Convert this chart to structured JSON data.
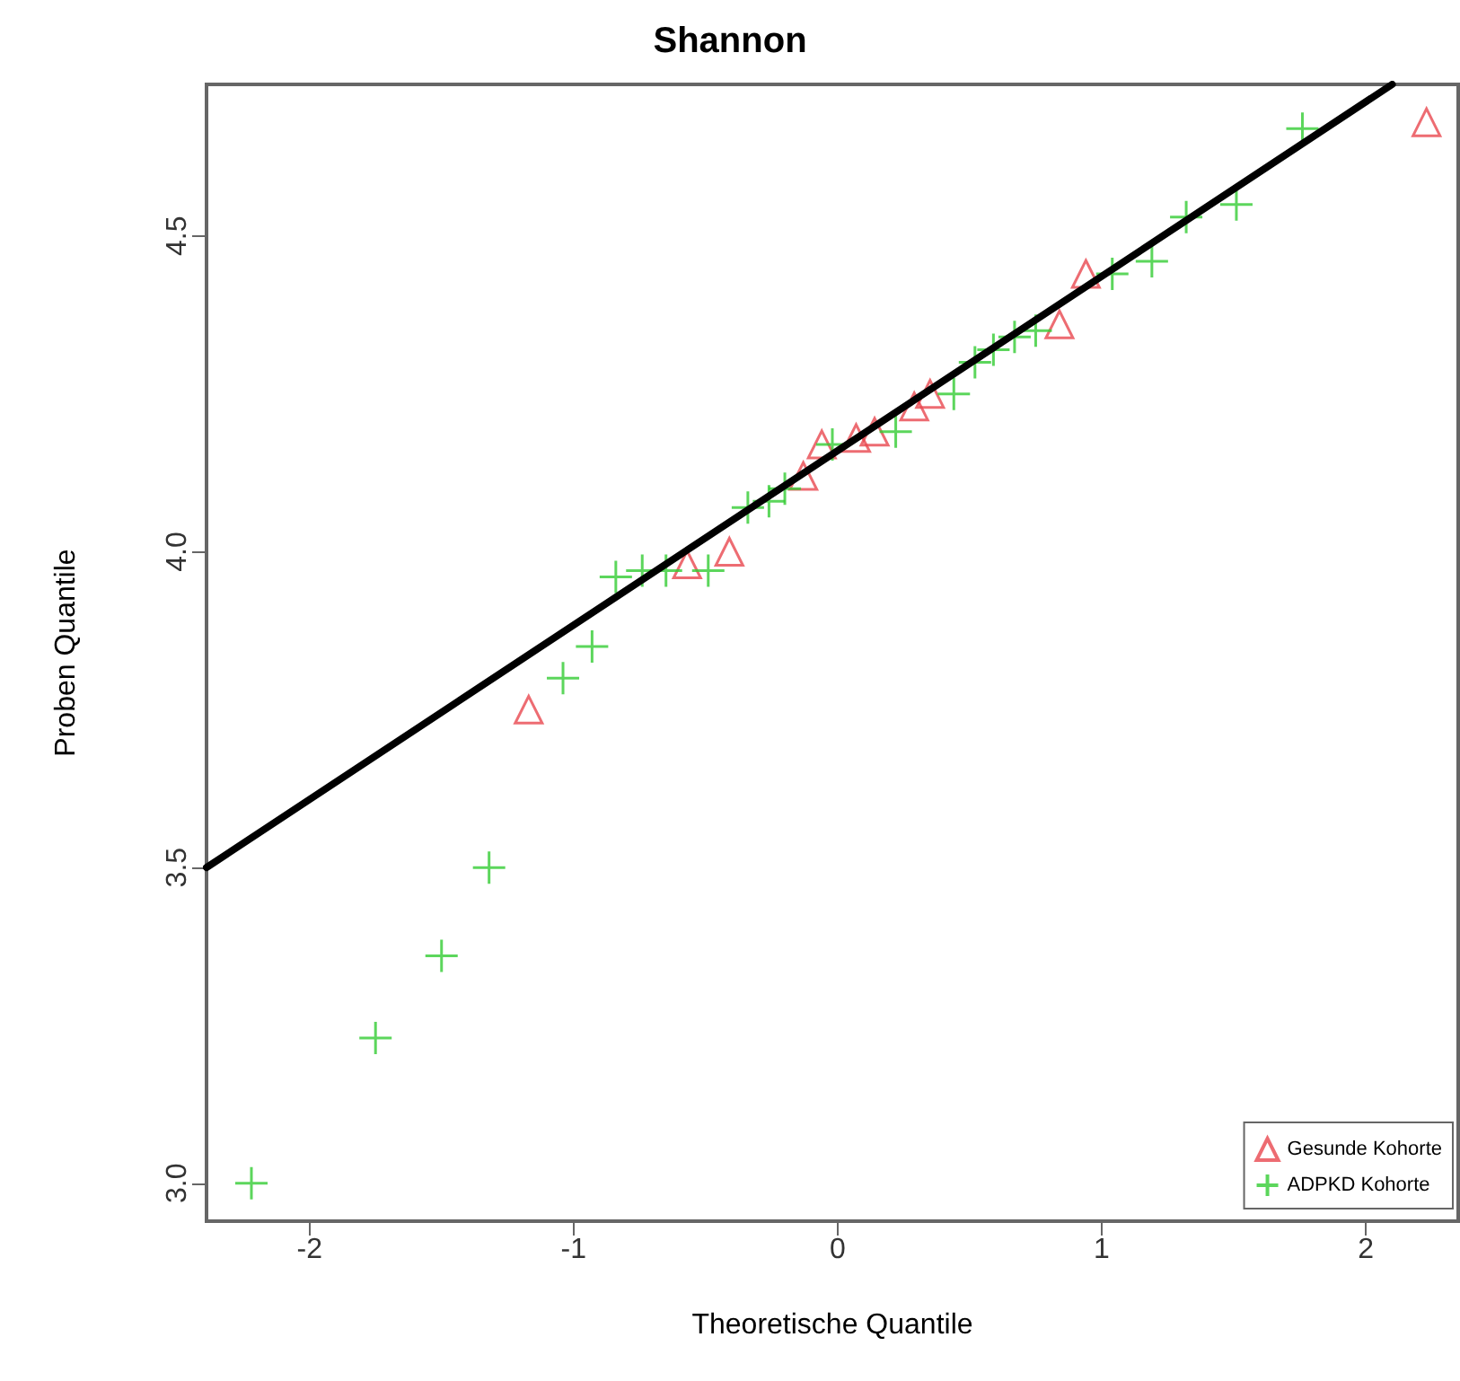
{
  "chart_data": {
    "type": "scatter",
    "title": "Shannon",
    "xlabel": "Theoretische Quantile",
    "ylabel": "Proben Quantile",
    "xlim": [
      -2.39,
      2.35
    ],
    "ylim": [
      2.94,
      4.74
    ],
    "xticks": [
      -2,
      -1,
      0,
      1,
      2
    ],
    "yticks": [
      {
        "value": 3,
        "label": "3.0"
      },
      {
        "value": 3.5,
        "label": "3.5"
      },
      {
        "value": 4,
        "label": "4.0"
      },
      {
        "value": 4.5,
        "label": "4.5"
      }
    ],
    "grid": false,
    "legend": "bottom right",
    "series": [
      {
        "name": "Gesunde Kohorte",
        "color": "#e8474f",
        "marker": "triangle",
        "x": [
          -1.17,
          -0.57,
          -0.41,
          -0.13,
          -0.06,
          0.07,
          0.14,
          0.29,
          0.35,
          0.84,
          0.94,
          2.23
        ],
        "values": [
          3.75,
          3.98,
          4.0,
          4.12,
          4.17,
          4.18,
          4.19,
          4.23,
          4.25,
          4.36,
          4.44,
          4.68
        ]
      },
      {
        "name": "ADPKD Kohorte",
        "color": "#33cc33",
        "marker": "cross",
        "x": [
          -2.22,
          -1.75,
          -1.5,
          -1.32,
          -1.04,
          -0.93,
          -0.84,
          -0.74,
          -0.65,
          -0.49,
          -0.34,
          -0.26,
          -0.2,
          -0.02,
          0.22,
          0.44,
          0.52,
          0.59,
          0.67,
          0.75,
          1.04,
          1.19,
          1.32,
          1.51,
          1.76
        ],
        "values": [
          3.0,
          3.23,
          3.36,
          3.5,
          3.8,
          3.85,
          3.96,
          3.97,
          3.97,
          3.97,
          4.07,
          4.08,
          4.1,
          4.17,
          4.19,
          4.25,
          4.3,
          4.32,
          4.34,
          4.35,
          4.44,
          4.46,
          4.53,
          4.55,
          4.67
        ]
      },
      {
        "type": "line",
        "color": "#000000",
        "marker": "none",
        "x": [
          -2.39,
          2.1
        ],
        "values": [
          3.5,
          4.74
        ]
      }
    ]
  }
}
